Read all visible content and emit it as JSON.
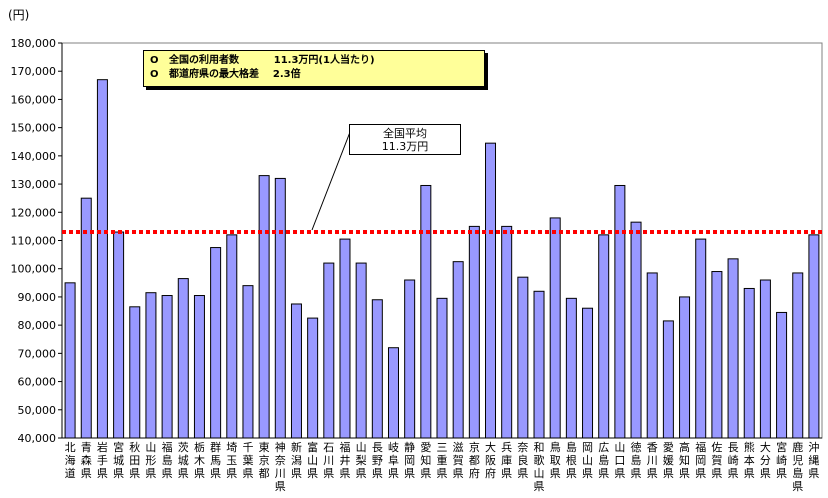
{
  "chart_data": {
    "type": "bar",
    "unit_label": "(円)",
    "ylim": [
      40000,
      180000
    ],
    "ytick_step": 10000,
    "ytick_labels": [
      "40,000",
      "50,000",
      "60,000",
      "70,000",
      "80,000",
      "90,000",
      "100,000",
      "110,000",
      "120,000",
      "130,000",
      "140,000",
      "150,000",
      "160,000",
      "170,000",
      "180,000"
    ],
    "bar_color": "#9999ff",
    "average_line": {
      "value": 113000,
      "color": "#ff0000",
      "label_line1": "全国平均",
      "label_line2": "11.3万円"
    },
    "notes": [
      "O   全国の利用者数          11.3万円(1人当たり)",
      "O   都道府県の最大格差    2.3倍"
    ],
    "categories": [
      "北海道",
      "青森県",
      "岩手県",
      "宮城県",
      "秋田県",
      "山形県",
      "福島県",
      "茨城県",
      "栃木県",
      "群馬県",
      "埼玉県",
      "千葉県",
      "東京都",
      "神奈川県",
      "新潟県",
      "富山県",
      "石川県",
      "福井県",
      "山梨県",
      "長野県",
      "岐阜県",
      "静岡県",
      "愛知県",
      "三重県",
      "滋賀県",
      "京都府",
      "大阪府",
      "兵庫県",
      "奈良県",
      "和歌山県",
      "鳥取県",
      "島根県",
      "岡山県",
      "広島県",
      "山口県",
      "徳島県",
      "香川県",
      "愛媛県",
      "高知県",
      "福岡県",
      "佐賀県",
      "長崎県",
      "熊本県",
      "大分県",
      "宮崎県",
      "鹿児島県",
      "沖縄県"
    ],
    "values": [
      95000,
      125000,
      167000,
      113000,
      86500,
      91500,
      90500,
      96500,
      90500,
      107500,
      112000,
      94000,
      133000,
      132000,
      87500,
      82500,
      102000,
      110500,
      102000,
      89000,
      72000,
      96000,
      129500,
      89500,
      102500,
      115000,
      144500,
      115000,
      97000,
      92000,
      118000,
      89500,
      86000,
      112000,
      129500,
      116500,
      98500,
      81500,
      90000,
      110500,
      99000,
      103500,
      93000,
      96000,
      84500,
      98500,
      112000
    ]
  }
}
